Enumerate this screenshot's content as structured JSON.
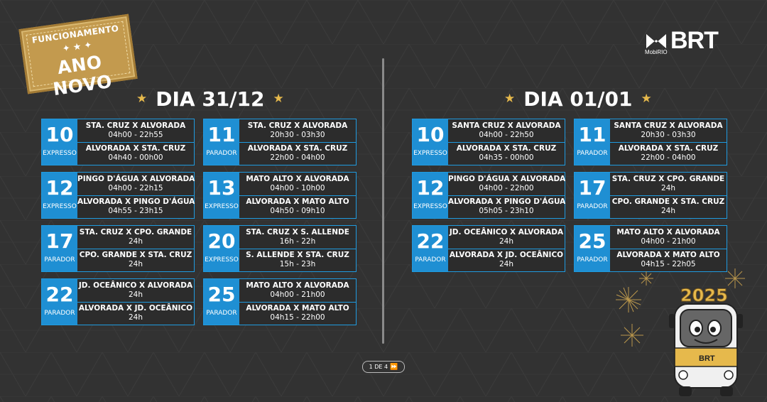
{
  "badge": {
    "top": "FUNCIONAMENTO",
    "main": "ANO NOVO"
  },
  "logo": {
    "sub": "MobiRIO",
    "brand": "BRT"
  },
  "days": [
    {
      "title": "DIA 31/12",
      "cards": [
        {
          "num": "10",
          "type": "EXPRESSO",
          "r1": {
            "name": "STA. CRUZ X ALVORADA",
            "time": "04h00 - 22h55"
          },
          "r2": {
            "name": "ALVORADA X STA. CRUZ",
            "time": "04h40 - 00h00"
          }
        },
        {
          "num": "11",
          "type": "PARADOR",
          "r1": {
            "name": "STA. CRUZ X ALVORADA",
            "time": "20h30 - 03h30"
          },
          "r2": {
            "name": "ALVORADA X STA. CRUZ",
            "time": "22h00 - 04h00"
          }
        },
        {
          "num": "12",
          "type": "EXPRESSO",
          "r1": {
            "name": "PINGO D'ÁGUA X ALVORADA",
            "time": "04h00 - 22h15"
          },
          "r2": {
            "name": "ALVORADA X PINGO D'ÁGUA",
            "time": "04h55 - 23h15"
          }
        },
        {
          "num": "13",
          "type": "EXPRESSO",
          "r1": {
            "name": "MATO ALTO X ALVORADA",
            "time": "04h00 - 10h00"
          },
          "r2": {
            "name": "ALVORADA X MATO ALTO",
            "time": "04h50 - 09h10"
          }
        },
        {
          "num": "17",
          "type": "PARADOR",
          "r1": {
            "name": "STA. CRUZ X CPO. GRANDE",
            "time": "24h"
          },
          "r2": {
            "name": "CPO. GRANDE X STA. CRUZ",
            "time": "24h"
          }
        },
        {
          "num": "20",
          "type": "EXPRESSO",
          "r1": {
            "name": "STA. CRUZ X S. ALLENDE",
            "time": "16h - 22h"
          },
          "r2": {
            "name": "S. ALLENDE X STA. CRUZ",
            "time": "15h - 23h"
          }
        },
        {
          "num": "22",
          "type": "PARADOR",
          "r1": {
            "name": "JD. OCEÂNICO X ALVORADA",
            "time": "24h"
          },
          "r2": {
            "name": "ALVORADA X JD. OCEÂNICO",
            "time": "24h"
          }
        },
        {
          "num": "25",
          "type": "PARADOR",
          "r1": {
            "name": "MATO ALTO X ALVORADA",
            "time": "04h00 - 21h00"
          },
          "r2": {
            "name": "ALVORADA X MATO ALTO",
            "time": "04h15 - 22h00"
          }
        }
      ]
    },
    {
      "title": "DIA 01/01",
      "cards": [
        {
          "num": "10",
          "type": "EXPRESSO",
          "r1": {
            "name": "SANTA CRUZ X ALVORADA",
            "time": "04h00 - 22h50"
          },
          "r2": {
            "name": "ALVORADA X STA. CRUZ",
            "time": "04h35 - 00h00"
          }
        },
        {
          "num": "11",
          "type": "PARADOR",
          "r1": {
            "name": "SANTA CRUZ X ALVORADA",
            "time": "20h30 - 03h30"
          },
          "r2": {
            "name": "ALVORADA X STA. CRUZ",
            "time": "22h00 - 04h00"
          }
        },
        {
          "num": "12",
          "type": "EXPRESSO",
          "r1": {
            "name": "PINGO D'ÁGUA X ALVORADA",
            "time": "04h00 - 22h00"
          },
          "r2": {
            "name": "ALVORADA X PINGO D'ÁGUA",
            "time": "05h05 - 23h10"
          }
        },
        {
          "num": "17",
          "type": "PARADOR",
          "r1": {
            "name": "STA. CRUZ X CPO. GRANDE",
            "time": "24h"
          },
          "r2": {
            "name": "CPO. GRANDE X STA. CRUZ",
            "time": "24h"
          }
        },
        {
          "num": "22",
          "type": "PARADOR",
          "r1": {
            "name": "JD. OCEÂNICO X ALVORADA",
            "time": "24h"
          },
          "r2": {
            "name": "ALVORADA X JD. OCEÂNICO",
            "time": "24h"
          }
        },
        {
          "num": "25",
          "type": "PARADOR",
          "r1": {
            "name": "MATO ALTO X ALVORADA",
            "time": "04h00 - 21h00"
          },
          "r2": {
            "name": "ALVORADA X MATO ALTO",
            "time": "04h15 - 22h05"
          }
        }
      ]
    }
  ],
  "pager": {
    "label": "1 DE 4"
  },
  "mascot": {
    "year": "2025",
    "label": "BRT"
  },
  "colors": {
    "accent_blue": "#1f8fd3",
    "gold": "#c39a4e",
    "background": "#323232"
  }
}
